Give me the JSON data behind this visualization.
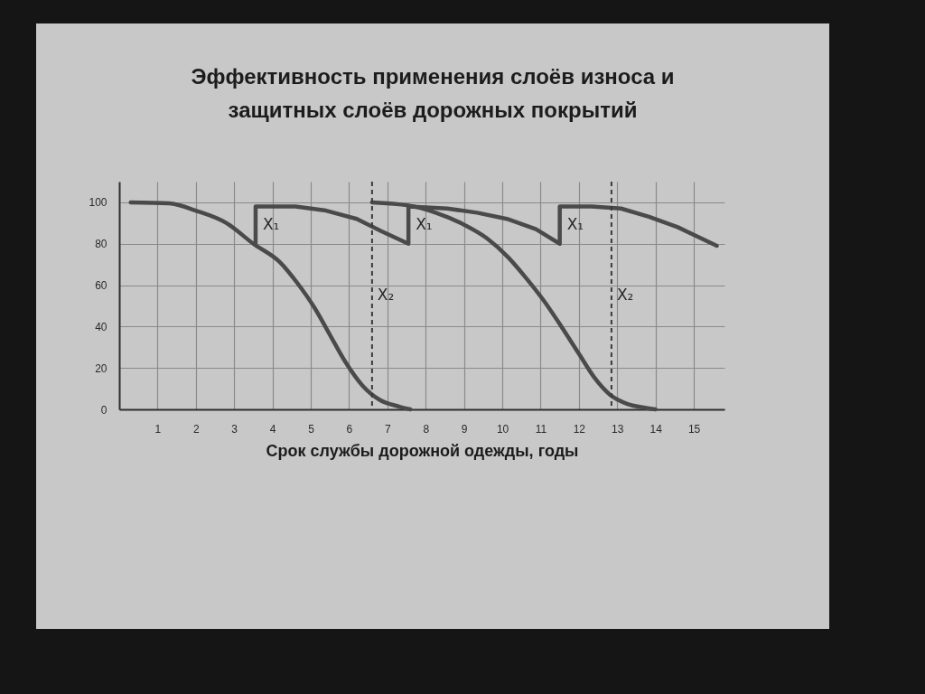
{
  "chart_data": {
    "type": "line",
    "title": "Эффективность применения слоёв износа и защитных слоёв дорожных покрытий",
    "xlabel": "Срок службы дорожной одежды, годы",
    "xlim": [
      0,
      15.8
    ],
    "xticks": [
      1,
      2,
      3,
      4,
      5,
      6,
      7,
      8,
      9,
      10,
      11,
      12,
      13,
      14,
      15
    ],
    "ylim": [
      0,
      110
    ],
    "yticks": [
      0,
      20,
      40,
      60,
      80,
      100
    ],
    "grid": true,
    "series": [
      {
        "color": "#4a4a4a",
        "x": [
          0.3,
          1.3,
          2.0,
          2.8,
          3.5,
          4.2,
          4.65,
          5.1,
          5.5,
          5.9,
          6.35,
          6.8,
          7.3,
          7.6
        ],
        "values": [
          100,
          99.5,
          96,
          90,
          80,
          71,
          61,
          49,
          36,
          23,
          11.5,
          4.6,
          1.4,
          0
        ]
      },
      {
        "color": "#4a4a4a",
        "x": [
          6.6,
          7.55,
          8.26,
          8.97,
          9.6,
          10.15,
          10.61,
          11.08,
          11.54,
          12.02,
          12.41,
          12.81,
          13.27,
          13.7,
          14.0
        ],
        "values": [
          100,
          98.5,
          95,
          89.5,
          82.6,
          73.5,
          63.7,
          52.6,
          40.1,
          26.3,
          15.2,
          7.1,
          2.6,
          0.9,
          0
        ]
      },
      {
        "color": "#4a4a4a",
        "x": [
          3.56,
          3.56,
          4.6,
          5.4,
          6.2,
          6.85,
          7.55,
          7.55,
          8.56,
          9.34,
          10.12,
          10.88,
          11.5,
          11.5,
          12.34,
          13.1,
          13.83,
          14.58,
          15.6
        ],
        "values": [
          80,
          98,
          98,
          96,
          92,
          86,
          80,
          98,
          97,
          95,
          92,
          87,
          80,
          98,
          98,
          97,
          93,
          88,
          79
        ]
      }
    ],
    "ref_lines": [
      {
        "axis": "x",
        "value": 6.6,
        "label": "X₂",
        "line_style": "dashed",
        "color": "#3a3a3a"
      },
      {
        "axis": "x",
        "value": 12.85,
        "label": "X₂",
        "line_style": "dashed",
        "color": "#3a3a3a"
      }
    ],
    "annotations": [
      {
        "text": "X₁",
        "x": 3.56,
        "y": 89
      },
      {
        "text": "X₁",
        "x": 7.55,
        "y": 89
      },
      {
        "text": "X₁",
        "x": 11.5,
        "y": 89
      }
    ]
  }
}
